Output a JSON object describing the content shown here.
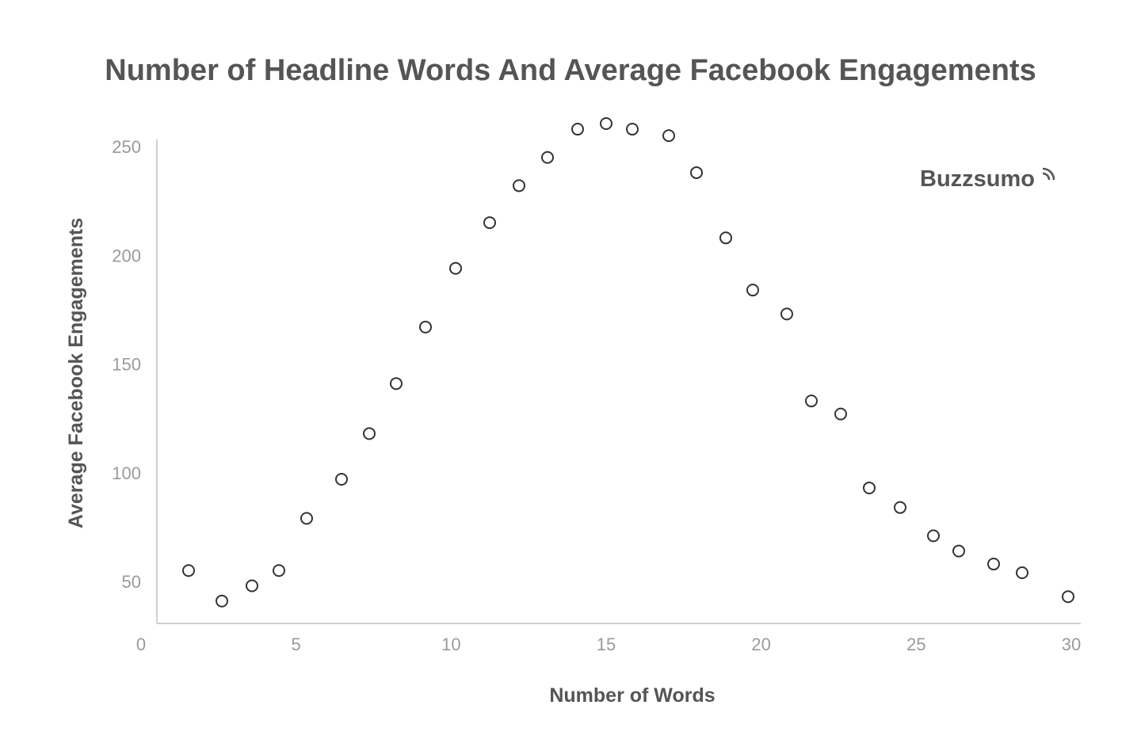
{
  "chart_data": {
    "type": "scatter",
    "title": "Number of Headline Words And Average Facebook Engagements",
    "xlabel": "Number of Words",
    "ylabel": "Average Facebook Engagements",
    "xlim": [
      0,
      30
    ],
    "ylim": [
      36,
      256
    ],
    "x_ticks": [
      0,
      5,
      10,
      15,
      20,
      25,
      30
    ],
    "x_tick_labels": [
      "0",
      "5",
      "10",
      "15",
      "20",
      "25",
      "30"
    ],
    "y_ticks": [
      50,
      100,
      150,
      200,
      250
    ],
    "y_tick_labels": [
      "50",
      "100",
      "150",
      "200",
      "250"
    ],
    "grid": false,
    "legend": "none",
    "marker": "hollow-circle",
    "brand": "Buzzsumo",
    "points": [
      {
        "x": 1,
        "y": 55
      },
      {
        "x": 2,
        "y": 41
      },
      {
        "x": 3,
        "y": 48
      },
      {
        "x": 4,
        "y": 55
      },
      {
        "x": 5,
        "y": 79
      },
      {
        "x": 6,
        "y": 97
      },
      {
        "x": 7,
        "y": 118
      },
      {
        "x": 8,
        "y": 141
      },
      {
        "x": 9,
        "y": 167
      },
      {
        "x": 10,
        "y": 194
      },
      {
        "x": 11,
        "y": 215
      },
      {
        "x": 12,
        "y": 232
      },
      {
        "x": 13,
        "y": 245
      },
      {
        "x": 14,
        "y": 258
      },
      {
        "x": 15,
        "y": 264
      },
      {
        "x": 16,
        "y": 258
      },
      {
        "x": 17,
        "y": 255
      },
      {
        "x": 18,
        "y": 238
      },
      {
        "x": 19,
        "y": 208
      },
      {
        "x": 20,
        "y": 184
      },
      {
        "x": 21,
        "y": 173
      },
      {
        "x": 22,
        "y": 133
      },
      {
        "x": 23,
        "y": 127
      },
      {
        "x": 24,
        "y": 93
      },
      {
        "x": 25,
        "y": 84
      },
      {
        "x": 26,
        "y": 71
      },
      {
        "x": 27,
        "y": 64
      },
      {
        "x": 28,
        "y": 58
      },
      {
        "x": 29,
        "y": 54
      },
      {
        "x": 30,
        "y": 43
      }
    ]
  }
}
